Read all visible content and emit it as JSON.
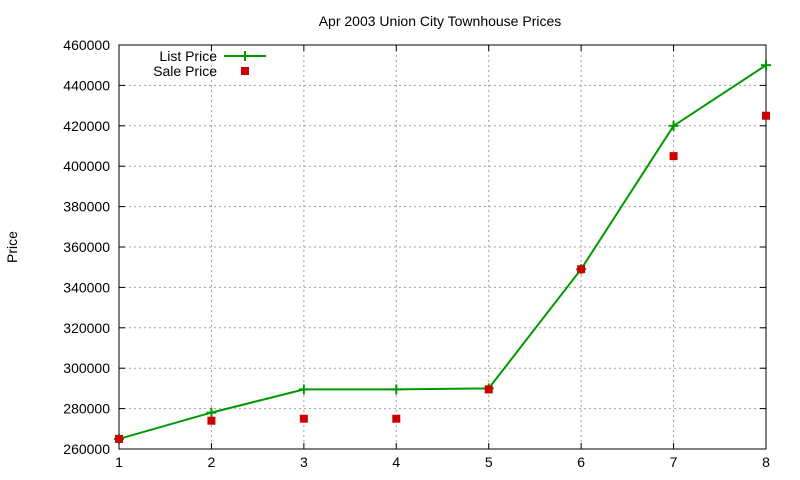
{
  "chart_data": {
    "type": "line",
    "title": "Apr 2003 Union City Townhouse Prices",
    "xlabel": "",
    "ylabel": "Price",
    "x": [
      1,
      2,
      3,
      4,
      5,
      6,
      7,
      8
    ],
    "xlim": [
      1,
      8
    ],
    "ylim": [
      260000,
      460000
    ],
    "xticks": [
      "1",
      "2",
      "3",
      "4",
      "5",
      "6",
      "7",
      "8"
    ],
    "yticks": [
      "260000",
      "280000",
      "300000",
      "320000",
      "340000",
      "360000",
      "380000",
      "400000",
      "420000",
      "440000",
      "460000"
    ],
    "grid": true,
    "legend_position": "top-left",
    "series": [
      {
        "name": "List Price",
        "style": "line with plus markers",
        "color": "#009900",
        "values": [
          265000,
          278000,
          289500,
          289500,
          290000,
          349000,
          420000,
          450000
        ]
      },
      {
        "name": "Sale Price",
        "style": "square markers",
        "color": "#cc0000",
        "values": [
          265000,
          274000,
          275000,
          275000,
          289500,
          349000,
          405000,
          425000
        ]
      }
    ]
  }
}
